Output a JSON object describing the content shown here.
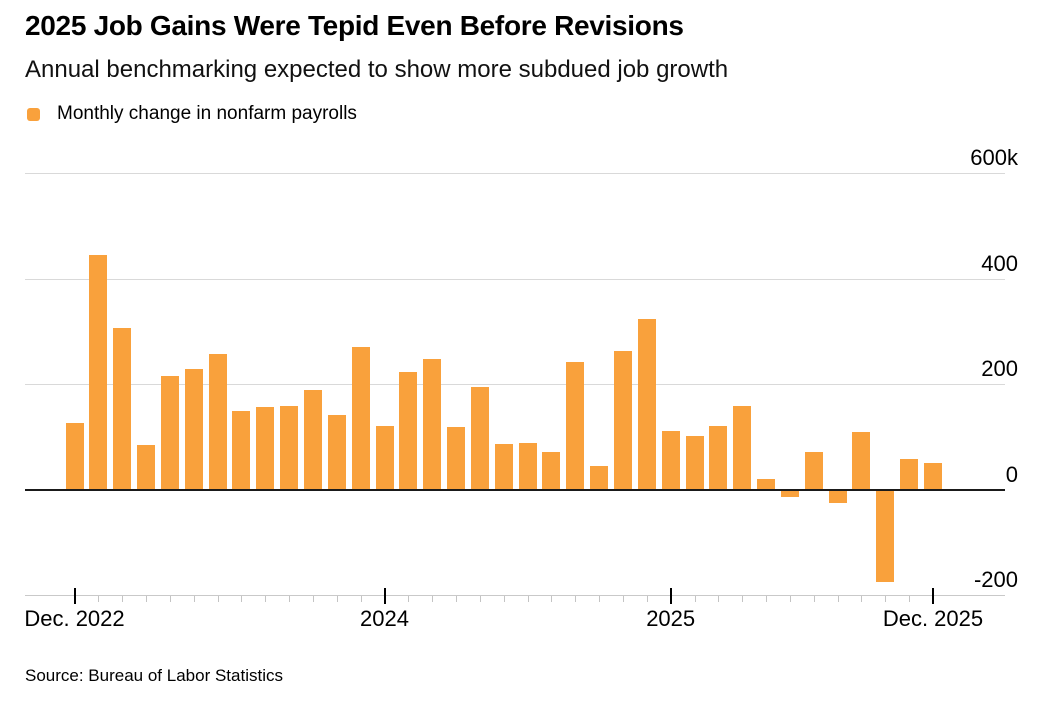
{
  "header": {
    "title": "2025 Job Gains Were Tepid Even Before Revisions",
    "subtitle": "Annual benchmarking expected to show more subdued job growth"
  },
  "legend": {
    "label": "Monthly change in nonfarm payrolls",
    "swatch_color": "#F9A13C"
  },
  "source": "Source: Bureau of Labor Statistics",
  "chart_data": {
    "type": "bar",
    "title": "2025 Job Gains Were Tepid Even Before Revisions",
    "subtitle": "Annual benchmarking expected to show more subdued job growth",
    "series_name": "Monthly change in nonfarm payrolls",
    "unit": "thousands of jobs (k)",
    "bar_color": "#F9A13C",
    "grid": "horizontal",
    "legend_position": "top-left",
    "y_axis_side": "right",
    "ylim": [
      -200,
      600
    ],
    "yticks": [
      {
        "value": 600,
        "label": "600k"
      },
      {
        "value": 400,
        "label": "400"
      },
      {
        "value": 200,
        "label": "200"
      },
      {
        "value": 0,
        "label": "0"
      },
      {
        "value": -200,
        "label": "-200"
      }
    ],
    "categories": [
      "Dec 2022",
      "Jan 2023",
      "Feb 2023",
      "Mar 2023",
      "Apr 2023",
      "May 2023",
      "Jun 2023",
      "Jul 2023",
      "Aug 2023",
      "Sep 2023",
      "Oct 2023",
      "Nov 2023",
      "Dec 2023",
      "Jan 2024",
      "Feb 2024",
      "Mar 2024",
      "Apr 2024",
      "May 2024",
      "Jun 2024",
      "Jul 2024",
      "Aug 2024",
      "Sep 2024",
      "Oct 2024",
      "Nov 2024",
      "Dec 2024",
      "Jan 2025",
      "Feb 2025",
      "Mar 2025",
      "Apr 2025",
      "May 2025",
      "Jun 2025",
      "Jul 2025",
      "Aug 2025",
      "Sep 2025",
      "Oct 2025",
      "Nov 2025",
      "Dec 2025"
    ],
    "values": [
      126,
      445,
      306,
      85,
      216,
      228,
      257,
      148,
      157,
      159,
      188,
      141,
      270,
      120,
      222,
      247,
      118,
      194,
      87,
      89,
      71,
      241,
      44,
      262,
      324,
      111,
      102,
      121,
      159,
      19,
      -14,
      71,
      -25,
      109,
      -176,
      57,
      51
    ],
    "xticks": [
      {
        "index": 0,
        "label": "Dec. 2022"
      },
      {
        "index": 13,
        "label": "2024"
      },
      {
        "index": 25,
        "label": "2025"
      },
      {
        "index": 36,
        "label": "Dec. 2025"
      }
    ]
  }
}
